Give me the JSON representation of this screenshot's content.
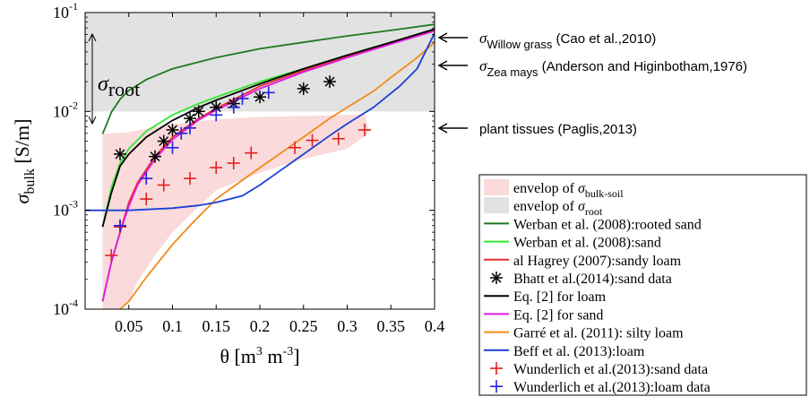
{
  "chart_data": {
    "type": "line",
    "xlabel_parts": {
      "main": "θ [m",
      "sup1": "3",
      "mid": " m",
      "sup2": "-3",
      "end": "]"
    },
    "ylabel_parts": {
      "main": "σ",
      "sub": "bulk",
      "end": " [S/m]"
    },
    "xlim": [
      0,
      0.4
    ],
    "ylim": [
      0.0001,
      0.1
    ],
    "yscale": "log",
    "x_ticks": [
      {
        "v": 0.05,
        "label": "0.05"
      },
      {
        "v": 0.1,
        "label": "0.1"
      },
      {
        "v": 0.15,
        "label": "0.15"
      },
      {
        "v": 0.2,
        "label": "0.2"
      },
      {
        "v": 0.25,
        "label": "0.25"
      },
      {
        "v": 0.3,
        "label": "0.3"
      },
      {
        "v": 0.35,
        "label": "0.35"
      },
      {
        "v": 0.4,
        "label": "0.4"
      }
    ],
    "y_ticks": [
      {
        "v": 0.0001,
        "base": "10",
        "exp": "-4"
      },
      {
        "v": 0.001,
        "base": "10",
        "exp": "-3"
      },
      {
        "v": 0.01,
        "base": "10",
        "exp": "-2"
      },
      {
        "v": 0.1,
        "base": "10",
        "exp": "-1"
      }
    ],
    "grid": false,
    "legend_position": "bottom-right, outside plot",
    "envelope_root": {
      "x": [
        0,
        0.4
      ],
      "y_low": 0.01,
      "y_high": 0.1,
      "color": "#e2e2e2"
    },
    "envelope_bulk_soil": {
      "color": "#fadada",
      "upper": [
        [
          0.02,
          0.0059
        ],
        [
          0.05,
          0.0062
        ],
        [
          0.1,
          0.0075
        ],
        [
          0.15,
          0.0083
        ],
        [
          0.2,
          0.0088
        ],
        [
          0.25,
          0.009
        ],
        [
          0.3,
          0.0092
        ],
        [
          0.32,
          0.0094
        ],
        [
          0.325,
          0.006
        ]
      ],
      "lower": [
        [
          0.325,
          0.006
        ],
        [
          0.3,
          0.0042
        ],
        [
          0.25,
          0.0033
        ],
        [
          0.2,
          0.0024
        ],
        [
          0.15,
          0.0016
        ],
        [
          0.1,
          0.0006
        ],
        [
          0.08,
          0.00035
        ],
        [
          0.06,
          0.00019
        ],
        [
          0.05,
          0.00012
        ],
        [
          0.04,
          0.0001
        ],
        [
          0.02,
          0.0001
        ]
      ]
    },
    "series": [
      {
        "name": "Werban et al. (2008):rooted sand",
        "color": "#1f7a1f",
        "points": [
          [
            0.02,
            0.0059
          ],
          [
            0.03,
            0.0098
          ],
          [
            0.04,
            0.0133
          ],
          [
            0.05,
            0.0163
          ],
          [
            0.07,
            0.021
          ],
          [
            0.1,
            0.027
          ],
          [
            0.15,
            0.035
          ],
          [
            0.2,
            0.043
          ],
          [
            0.25,
            0.05
          ],
          [
            0.3,
            0.058
          ],
          [
            0.35,
            0.066
          ],
          [
            0.4,
            0.076
          ]
        ]
      },
      {
        "name": "Werban et al. (2008):sand",
        "color": "#33e633",
        "points": [
          [
            0.02,
            0.00068
          ],
          [
            0.03,
            0.0017
          ],
          [
            0.04,
            0.003
          ],
          [
            0.05,
            0.0042
          ],
          [
            0.07,
            0.0063
          ],
          [
            0.1,
            0.0092
          ],
          [
            0.13,
            0.012
          ],
          [
            0.16,
            0.015
          ],
          [
            0.2,
            0.02
          ],
          [
            0.25,
            0.027
          ],
          [
            0.3,
            0.037
          ],
          [
            0.35,
            0.05
          ],
          [
            0.4,
            0.068
          ]
        ]
      },
      {
        "name": "al Hagrey (2007):sandy loam",
        "color": "#e03030",
        "points": [
          [
            0.02,
            0.00012
          ],
          [
            0.03,
            0.0003
          ],
          [
            0.04,
            0.0006
          ],
          [
            0.05,
            0.0012
          ],
          [
            0.06,
            0.0019
          ],
          [
            0.08,
            0.0035
          ],
          [
            0.1,
            0.0055
          ],
          [
            0.13,
            0.0085
          ],
          [
            0.15,
            0.0107
          ],
          [
            0.2,
            0.018
          ],
          [
            0.25,
            0.026
          ],
          [
            0.3,
            0.036
          ],
          [
            0.35,
            0.049
          ],
          [
            0.4,
            0.066
          ]
        ]
      },
      {
        "name": "Eq. [2] for loam",
        "color": "#000000",
        "points": [
          [
            0.02,
            0.00068
          ],
          [
            0.03,
            0.0015
          ],
          [
            0.04,
            0.0028
          ],
          [
            0.05,
            0.0037
          ],
          [
            0.07,
            0.0055
          ],
          [
            0.1,
            0.0081
          ],
          [
            0.13,
            0.011
          ],
          [
            0.15,
            0.013
          ],
          [
            0.2,
            0.019
          ],
          [
            0.25,
            0.027
          ],
          [
            0.3,
            0.037
          ],
          [
            0.35,
            0.05
          ],
          [
            0.4,
            0.068
          ]
        ]
      },
      {
        "name": "Eq. [2] for sand",
        "color": "#e01ae0",
        "points": [
          [
            0.02,
            0.00012
          ],
          [
            0.03,
            0.0003
          ],
          [
            0.04,
            0.0006
          ],
          [
            0.05,
            0.0011
          ],
          [
            0.06,
            0.0018
          ],
          [
            0.08,
            0.0033
          ],
          [
            0.1,
            0.0052
          ],
          [
            0.13,
            0.0082
          ],
          [
            0.15,
            0.0103
          ],
          [
            0.2,
            0.017
          ],
          [
            0.25,
            0.025
          ],
          [
            0.3,
            0.035
          ],
          [
            0.35,
            0.048
          ],
          [
            0.4,
            0.065
          ]
        ]
      },
      {
        "name": "Garré et al. (2011): silty loam",
        "color": "#f08a1a",
        "points": [
          [
            0.04,
            0.0001
          ],
          [
            0.05,
            0.00012
          ],
          [
            0.07,
            0.00021
          ],
          [
            0.1,
            0.00045
          ],
          [
            0.12,
            0.0007
          ],
          [
            0.15,
            0.0013
          ],
          [
            0.2,
            0.0027
          ],
          [
            0.25,
            0.0055
          ],
          [
            0.28,
            0.0085
          ],
          [
            0.3,
            0.011
          ],
          [
            0.33,
            0.016
          ],
          [
            0.35,
            0.022
          ],
          [
            0.38,
            0.035
          ],
          [
            0.4,
            0.05
          ]
        ]
      },
      {
        "name": "Beff et al. (2013):loam",
        "color": "#1a3fd6",
        "points": [
          [
            0,
            0.001
          ],
          [
            0.05,
            0.001
          ],
          [
            0.1,
            0.00105
          ],
          [
            0.13,
            0.00112
          ],
          [
            0.15,
            0.0012
          ],
          [
            0.18,
            0.0014
          ],
          [
            0.2,
            0.0018
          ],
          [
            0.22,
            0.0024
          ],
          [
            0.25,
            0.0037
          ],
          [
            0.28,
            0.0057
          ],
          [
            0.3,
            0.0075
          ],
          [
            0.33,
            0.011
          ],
          [
            0.36,
            0.018
          ],
          [
            0.38,
            0.027
          ],
          [
            0.4,
            0.062
          ]
        ]
      }
    ],
    "scatter_series": [
      {
        "name": "Bhatt et al.(2014):sand data",
        "marker": "asterisk",
        "color": "#000000",
        "points": [
          [
            0.04,
            0.0037
          ],
          [
            0.08,
            0.0035
          ],
          [
            0.09,
            0.005
          ],
          [
            0.1,
            0.0065
          ],
          [
            0.12,
            0.0085
          ],
          [
            0.13,
            0.01
          ],
          [
            0.15,
            0.011
          ],
          [
            0.17,
            0.012
          ],
          [
            0.2,
            0.014
          ],
          [
            0.25,
            0.017
          ],
          [
            0.28,
            0.02
          ]
        ]
      },
      {
        "name": "Wunderlich et al.(2013):sand data",
        "marker": "plus",
        "color": "#e02020",
        "points": [
          [
            0.03,
            0.00035
          ],
          [
            0.04,
            0.00068
          ],
          [
            0.07,
            0.0013
          ],
          [
            0.09,
            0.0018
          ],
          [
            0.12,
            0.0021
          ],
          [
            0.15,
            0.0027
          ],
          [
            0.17,
            0.003
          ],
          [
            0.19,
            0.0038
          ],
          [
            0.24,
            0.0043
          ],
          [
            0.26,
            0.0051
          ],
          [
            0.29,
            0.0053
          ],
          [
            0.32,
            0.0065
          ]
        ]
      },
      {
        "name": "Wunderlich et al.(2013):loam data",
        "marker": "plus",
        "color": "#2020e0",
        "points": [
          [
            0.04,
            0.0007
          ],
          [
            0.07,
            0.0021
          ],
          [
            0.1,
            0.0043
          ],
          [
            0.11,
            0.006
          ],
          [
            0.12,
            0.0068
          ],
          [
            0.15,
            0.0092
          ],
          [
            0.17,
            0.011
          ],
          [
            0.18,
            0.0135
          ],
          [
            0.21,
            0.0155
          ]
        ]
      }
    ],
    "sigma_root_label": {
      "main": "σ",
      "sub": "root"
    },
    "right_annotations": [
      {
        "value": 0.1,
        "sym": "σ",
        "sub": "Willow grass",
        "text": " (Cao et al.,2010)"
      },
      {
        "value": 0.05,
        "sym": "σ",
        "sub": "Zea mays",
        "text": " (Anderson and Higinbotham,1976)"
      },
      {
        "value": 0.01,
        "sym": "",
        "sub": "",
        "text": "plant tissues (Paglis,2013)"
      }
    ],
    "legend_entries": [
      {
        "kind": "patch",
        "color": "#fadada",
        "prefix": "envelop of ",
        "sym": "σ",
        "sub": "bulk-soil"
      },
      {
        "kind": "patch",
        "color": "#e2e2e2",
        "prefix": "envelop of ",
        "sym": "σ",
        "sub": "root"
      },
      {
        "kind": "line",
        "color": "#1f7a1f",
        "text": "Werban et al. (2008):rooted sand"
      },
      {
        "kind": "line",
        "color": "#33e633",
        "text": "Werban et al. (2008):sand"
      },
      {
        "kind": "line",
        "color": "#e03030",
        "text": "al Hagrey (2007):sandy loam"
      },
      {
        "kind": "asterisk",
        "color": "#000000",
        "text": "Bhatt et al.(2014):sand data"
      },
      {
        "kind": "line",
        "color": "#000000",
        "text": "Eq. [2] for loam"
      },
      {
        "kind": "line",
        "color": "#e01ae0",
        "text": "Eq. [2] for sand"
      },
      {
        "kind": "line",
        "color": "#f08a1a",
        "text": "Garré et al. (2011): silty loam"
      },
      {
        "kind": "line",
        "color": "#1a3fd6",
        "text": "Beff et al. (2013):loam"
      },
      {
        "kind": "plus",
        "color": "#e02020",
        "text": "Wunderlich et al.(2013):sand data"
      },
      {
        "kind": "plus",
        "color": "#2020e0",
        "text": "Wunderlich et al.(2013):loam data"
      }
    ]
  }
}
